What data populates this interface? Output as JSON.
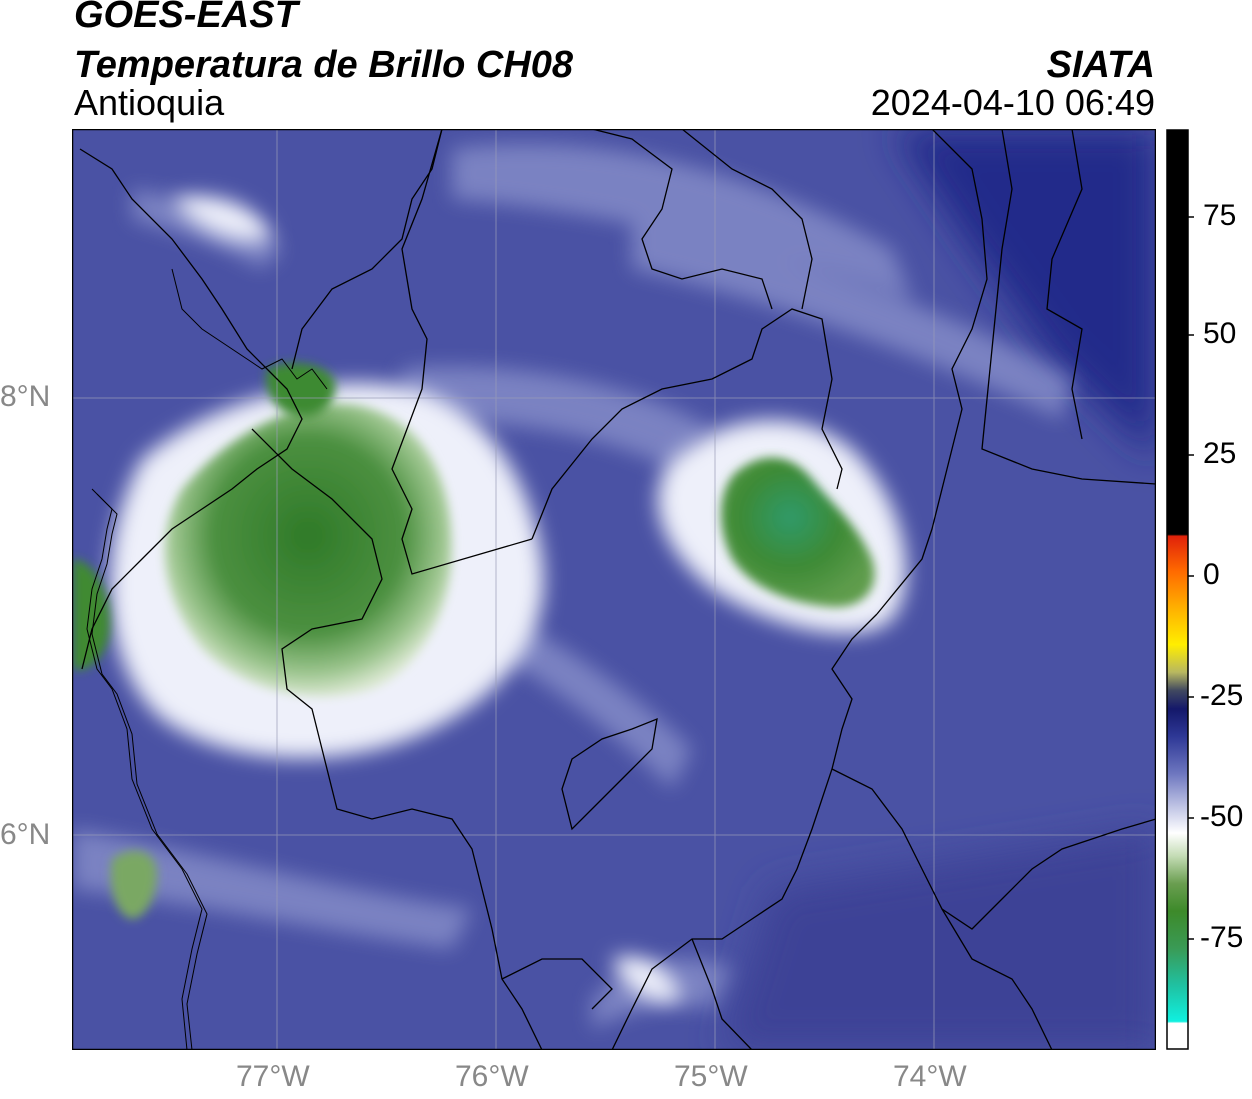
{
  "header": {
    "satellite": "GOES-EAST",
    "product": "Temperatura de Brillo CH08",
    "region": "Antioquia",
    "agency": "SIATA",
    "datetime": "2024-04-10 06:49"
  },
  "map": {
    "lat_labels": [
      "8°N",
      "6°N"
    ],
    "lon_labels": [
      "77°W",
      "76°W",
      "75°W",
      "74°W"
    ],
    "colors": {
      "background": "#4a52a4",
      "cold_core": "#3d8a30",
      "warm_band": "#e8ebf6",
      "border": "#000000"
    },
    "cloud_areas": [
      "western-convective-system",
      "central-convective-cell",
      "southwest-cell"
    ]
  },
  "colorbar": {
    "ticks": [
      "75",
      "50",
      "25",
      "0",
      "-25",
      "-50",
      "-75"
    ],
    "colors": {
      "top": "#000000",
      "red": "#e0220a",
      "orange": "#ff9900",
      "yellow": "#ffee00",
      "navy": "#14186a",
      "white": "#ffffff",
      "green": "#3d8a2a",
      "cyan": "#10f0e0"
    }
  }
}
